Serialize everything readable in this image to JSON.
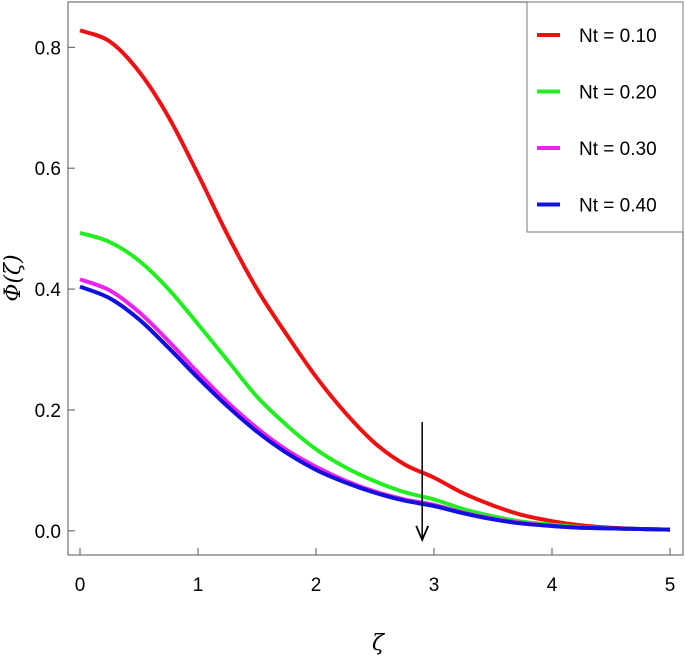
{
  "chart_data": {
    "type": "line",
    "title": "",
    "xlabel": "ζ",
    "ylabel": "Φ(ζ)",
    "xlim": [
      0,
      5
    ],
    "ylim": [
      -0.04,
      0.875
    ],
    "x_ticks": [
      0,
      1,
      2,
      3,
      4,
      5
    ],
    "x_tick_labels": [
      "0",
      "1",
      "2",
      "3",
      "4",
      "5"
    ],
    "y_ticks": [
      0.0,
      0.2,
      0.4,
      0.6,
      0.8
    ],
    "y_tick_labels": [
      "0.0",
      "0.2",
      "0.4",
      "0.6",
      "0.8"
    ],
    "grid": false,
    "legend_position": "top-right",
    "x": [
      0,
      0.25,
      0.5,
      0.75,
      1,
      1.25,
      1.5,
      1.75,
      2,
      2.25,
      2.5,
      2.75,
      3,
      3.25,
      3.5,
      3.75,
      4,
      4.25,
      4.5,
      4.75,
      5
    ],
    "series": [
      {
        "name": "Nt = 0.10",
        "color": "#ee1111",
        "values": [
          0.828,
          0.81,
          0.76,
          0.685,
          0.59,
          0.49,
          0.4,
          0.325,
          0.255,
          0.195,
          0.145,
          0.11,
          0.088,
          0.062,
          0.042,
          0.026,
          0.016,
          0.009,
          0.005,
          0.003,
          0.002
        ]
      },
      {
        "name": "Nt = 0.20",
        "color": "#22ee22",
        "values": [
          0.493,
          0.478,
          0.447,
          0.4,
          0.342,
          0.282,
          0.222,
          0.175,
          0.135,
          0.105,
          0.082,
          0.064,
          0.052,
          0.036,
          0.024,
          0.015,
          0.01,
          0.006,
          0.004,
          0.003,
          0.002
        ]
      },
      {
        "name": "Nt = 0.30",
        "color": "#ee22ee",
        "values": [
          0.416,
          0.398,
          0.362,
          0.314,
          0.262,
          0.213,
          0.17,
          0.134,
          0.106,
          0.083,
          0.065,
          0.052,
          0.043,
          0.03,
          0.02,
          0.013,
          0.008,
          0.005,
          0.004,
          0.003,
          0.002
        ]
      },
      {
        "name": "Nt = 0.40",
        "color": "#1111dd",
        "values": [
          0.404,
          0.385,
          0.35,
          0.303,
          0.253,
          0.206,
          0.164,
          0.129,
          0.101,
          0.08,
          0.063,
          0.05,
          0.041,
          0.029,
          0.019,
          0.012,
          0.008,
          0.005,
          0.004,
          0.003,
          0.002
        ]
      }
    ],
    "annotations": [
      {
        "type": "arrow",
        "direction": "down",
        "x": 2.9,
        "y_start": 0.18,
        "y_end": -0.015
      }
    ]
  }
}
